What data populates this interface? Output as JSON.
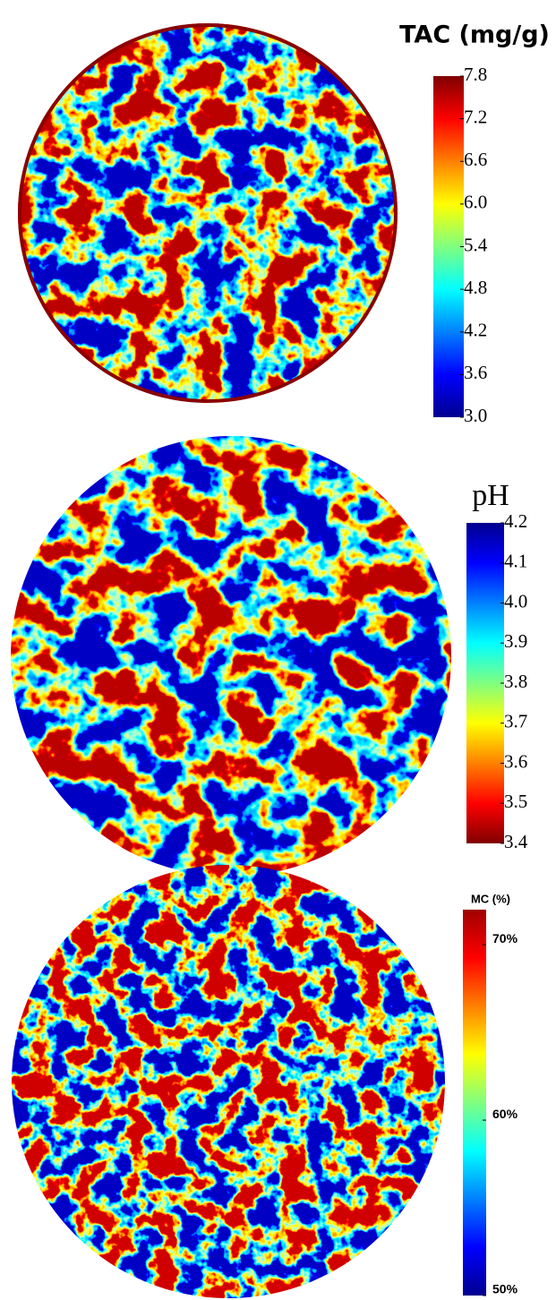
{
  "chart_data": [
    {
      "type": "heatmap",
      "title": "TAC (mg/g)",
      "colors": [
        "#00008f",
        "#0000ff",
        "#0080ff",
        "#00ffff",
        "#80ff80",
        "#ffff00",
        "#ff8000",
        "#ff0000",
        "#800000"
      ],
      "clim": [
        3.0,
        7.8
      ],
      "ticks": [
        {
          "value": 3,
          "label": "3.0"
        },
        3.6,
        4.2,
        4.8,
        5.4,
        {
          "value": 6,
          "label": "6.0"
        },
        6.6,
        7.2,
        7.8
      ]
    },
    {
      "type": "heatmap",
      "title": "pH",
      "colors": [
        "#800000",
        "#ff0000",
        "#ff8000",
        "#ffff00",
        "#80ff80",
        "#00ffff",
        "#0080ff",
        "#0000ff",
        "#00008f"
      ],
      "clim": [
        3.4,
        4.2
      ],
      "ticks": [
        3.4,
        3.5,
        3.6,
        3.7,
        3.8,
        3.9,
        {
          "value": 4,
          "label": "4.0"
        },
        4.1,
        4.2
      ]
    },
    {
      "type": "heatmap",
      "title": "MC (%)",
      "colors": [
        "#00008f",
        "#0000ff",
        "#0080ff",
        "#00ffff",
        "#80ff80",
        "#ffff00",
        "#ff8000",
        "#ff0000",
        "#a00000"
      ],
      "clim": [
        50,
        72
      ],
      "ticks": [
        {
          "value": 50,
          "label": "50%"
        },
        {
          "value": 60,
          "label": "60%"
        },
        {
          "value": 70,
          "label": "70%"
        }
      ]
    }
  ]
}
